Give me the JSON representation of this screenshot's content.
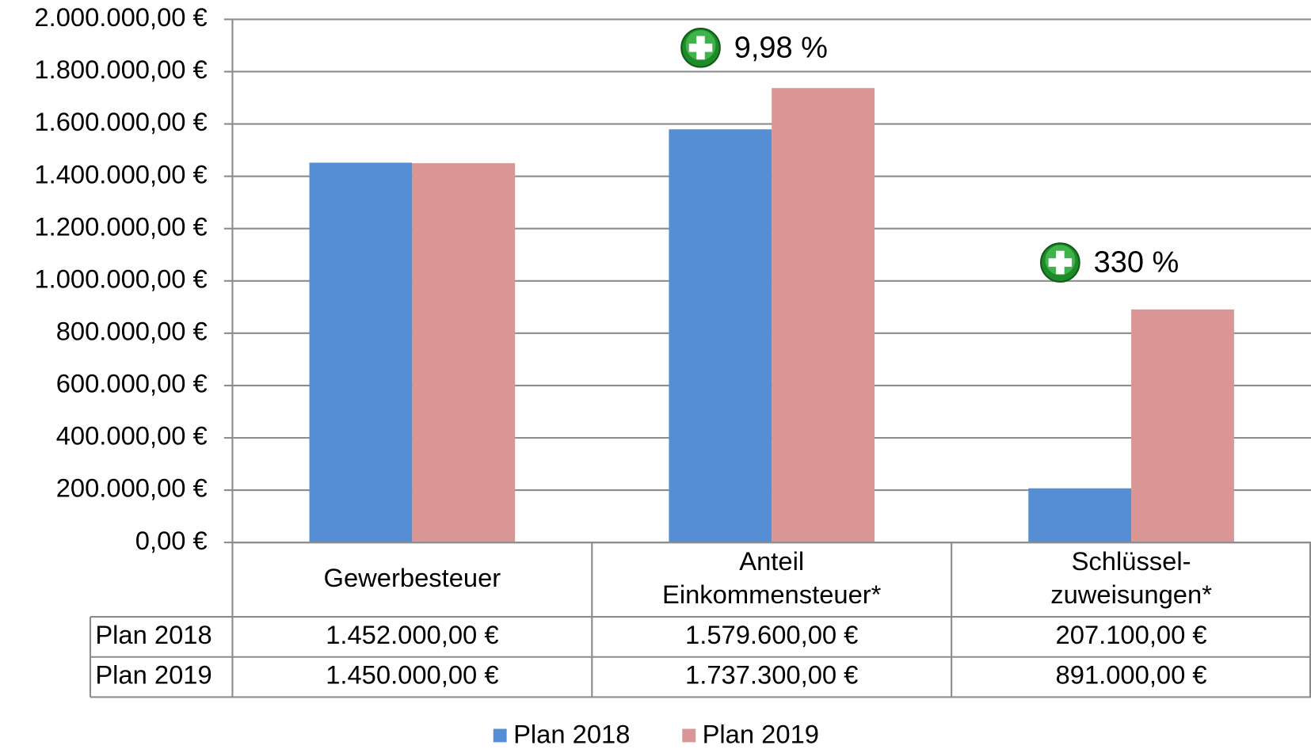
{
  "chart_data": {
    "type": "bar",
    "categories": [
      "Gewerbesteuer",
      "Anteil\nEinkommensteuer*",
      "Schlüssel-\nzuweisungen*"
    ],
    "series": [
      {
        "name": "Plan 2018",
        "color": "#558ed5",
        "values": [
          1452000,
          1579600,
          207100
        ],
        "value_labels": [
          "1.452.000,00 €",
          "1.579.600,00 €",
          "207.100,00 €"
        ]
      },
      {
        "name": "Plan 2019",
        "color": "#d99694",
        "values": [
          1450000,
          1737300,
          891000
        ],
        "value_labels": [
          "1.450.000,00 €",
          "1.737.300,00 €",
          "891.000,00 €"
        ]
      }
    ],
    "ylim": [
      0,
      2000000
    ],
    "yticks": [
      {
        "value": 0,
        "label": "0,00 €"
      },
      {
        "value": 200000,
        "label": "200.000,00 €"
      },
      {
        "value": 400000,
        "label": "400.000,00 €"
      },
      {
        "value": 600000,
        "label": "600.000,00 €"
      },
      {
        "value": 800000,
        "label": "800.000,00 €"
      },
      {
        "value": 1000000,
        "label": "1.000.000,00 €"
      },
      {
        "value": 1200000,
        "label": "1.200.000,00 €"
      },
      {
        "value": 1400000,
        "label": "1.400.000,00 €"
      },
      {
        "value": 1600000,
        "label": "1.600.000,00 €"
      },
      {
        "value": 1800000,
        "label": "1.800.000,00 €"
      },
      {
        "value": 2000000,
        "label": "2.000.000,00 €"
      }
    ],
    "grid": true,
    "legend": "bottom",
    "annotations": [
      "9,98 %",
      "330 %"
    ]
  }
}
